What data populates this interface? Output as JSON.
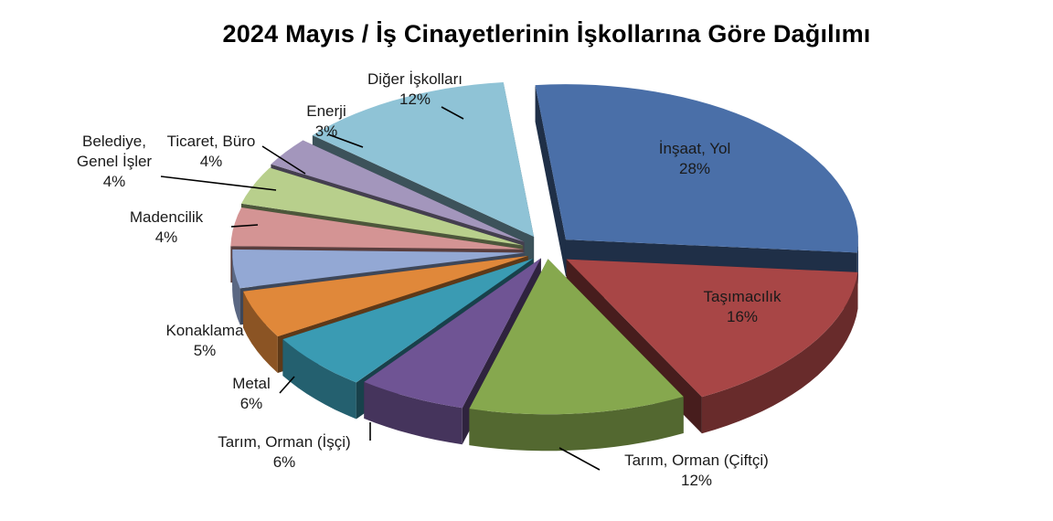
{
  "chart_data": {
    "type": "pie",
    "style": "3d-exploded",
    "title": "2024 Mayıs / İş Cinayetlerinin İşkollarına Göre Dağılımı",
    "slices": [
      {
        "label": "İnşaat, Yol",
        "value": 28,
        "value_label": "28%",
        "color": "#4a6fa8"
      },
      {
        "label": "Taşımacılık",
        "value": 16,
        "value_label": "16%",
        "color": "#a84646"
      },
      {
        "label": "Tarım, Orman (Çiftçi)",
        "value": 12,
        "value_label": "12%",
        "color": "#86a84e"
      },
      {
        "label": "Tarım, Orman (İşçi)",
        "value": 6,
        "value_label": "6%",
        "color": "#6f5494"
      },
      {
        "label": "Metal",
        "value": 6,
        "value_label": "6%",
        "color": "#3a9bb3"
      },
      {
        "label": "Konaklama",
        "value": 5,
        "value_label": "5%",
        "color": "#e0883a"
      },
      {
        "label": "Madencilik",
        "value": 4,
        "value_label": "4%",
        "color": "#93a8d4"
      },
      {
        "label": "Belediye, Genel İşler",
        "value": 4,
        "value_label": "4%",
        "color": "#d49494"
      },
      {
        "label": "Ticaret, Büro",
        "value": 4,
        "value_label": "4%",
        "color": "#b8cf8c"
      },
      {
        "label": "Enerji",
        "value": 3,
        "value_label": "3%",
        "color": "#a396bc"
      },
      {
        "label": "Diğer İşkolları",
        "value": 12,
        "value_label": "12%",
        "color": "#8fc3d6"
      }
    ]
  }
}
